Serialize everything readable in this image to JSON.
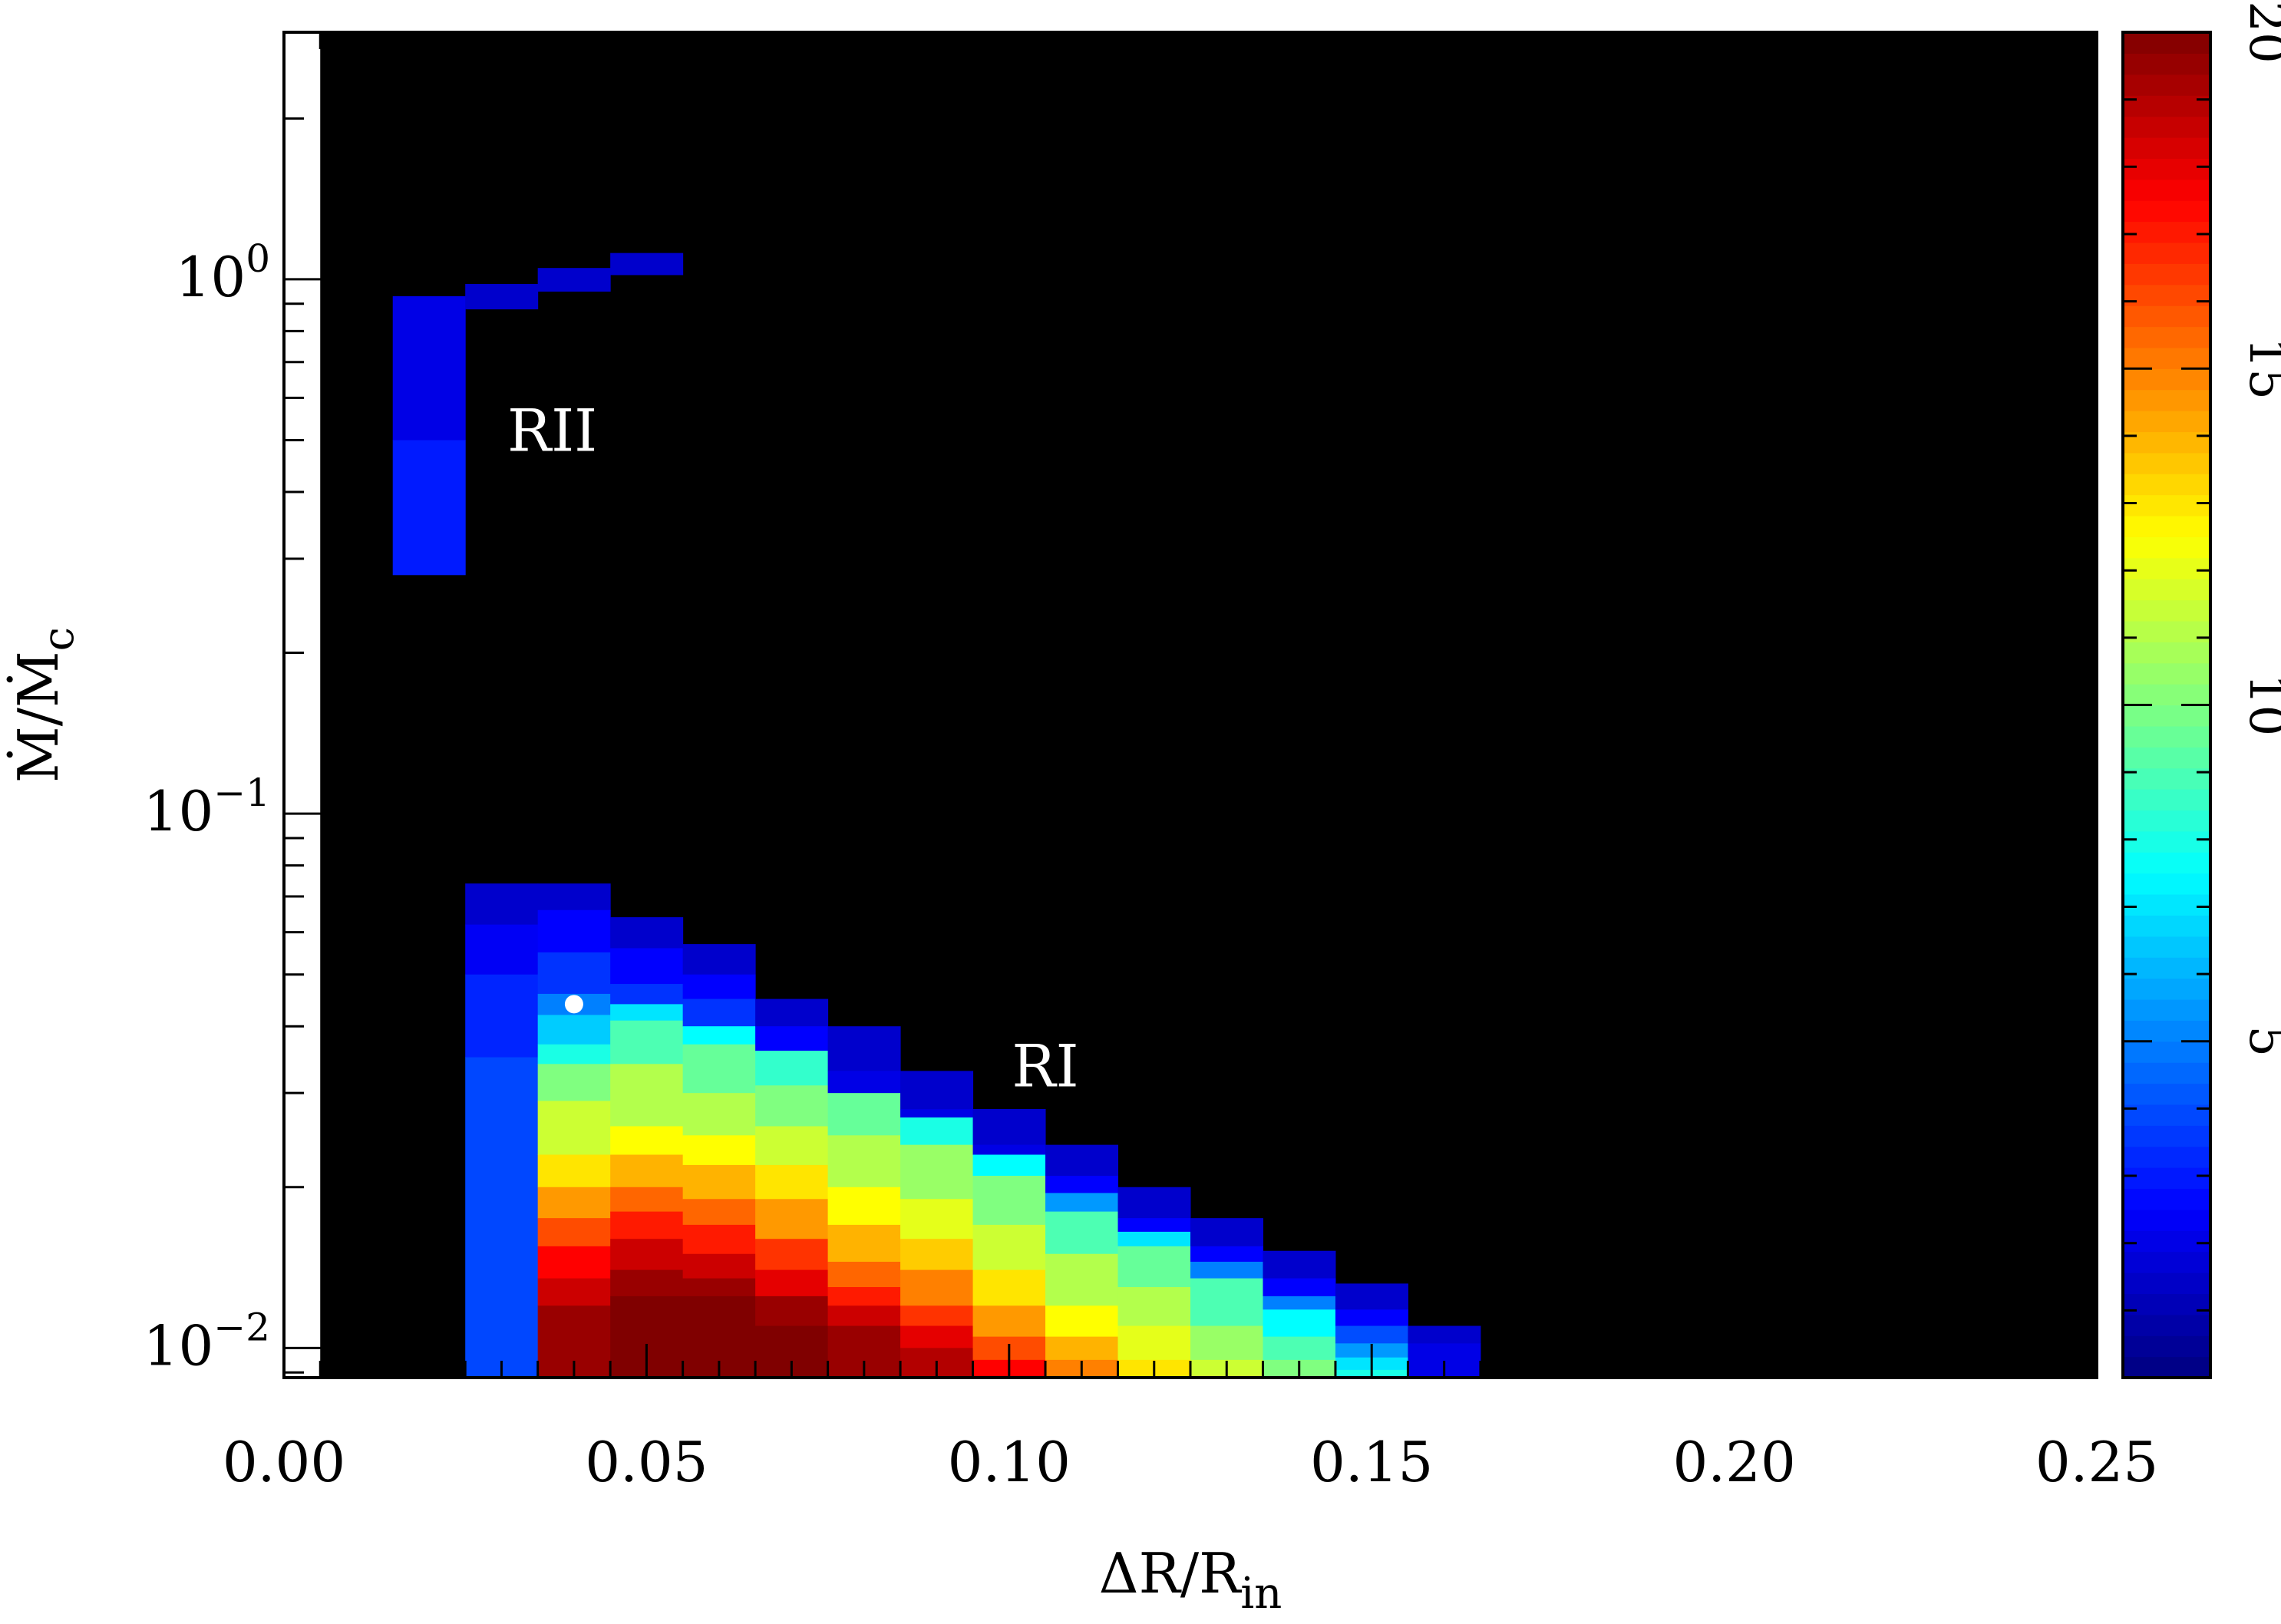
{
  "chart_data": {
    "type": "heatmap",
    "xlabel": {
      "base": "ΔR/R",
      "sub": "in"
    },
    "ylabel": {
      "base": "Ṁ/Ṁ",
      "sub": "c"
    },
    "x_scale": "linear",
    "y_scale": "log",
    "xlim": [
      0.0,
      0.25
    ],
    "ylim": [
      0.0088,
      2.9
    ],
    "x_ticks": [
      0.0,
      0.05,
      0.1,
      0.15,
      0.2,
      0.25
    ],
    "x_tick_labels": [
      "0.00",
      "0.05",
      "0.10",
      "0.15",
      "0.20",
      "0.25"
    ],
    "y_ticks": [
      0.01,
      0.1,
      1
    ],
    "y_tick_labels": [
      {
        "base": "10",
        "exp": "−2"
      },
      {
        "base": "10",
        "exp": "−1"
      },
      {
        "base": "10",
        "exp": "0"
      }
    ],
    "background": "#000000",
    "colorbar": {
      "range": [
        0,
        20
      ],
      "ticks": [
        5,
        10,
        15,
        20
      ],
      "tick_labels": [
        "5",
        "10",
        "15",
        "20"
      ],
      "colormap": "jet",
      "position": "right"
    },
    "annotations": [
      {
        "text": "RII",
        "x": 0.037,
        "y": 0.51
      },
      {
        "text": "RI",
        "x": 0.105,
        "y": 0.033
      }
    ],
    "marker": {
      "x": 0.04,
      "y": 0.044,
      "color": "#ffffff"
    },
    "columns": [
      {
        "x0": 0.015,
        "x1": 0.025,
        "ymin": 0.28,
        "ymax": 0.93,
        "cells": [
          {
            "y1": 0.93,
            "v": 2.0
          },
          {
            "y1": 0.5,
            "v": 3.0
          }
        ]
      },
      {
        "x0": 0.025,
        "x1": 0.035,
        "ymin": 0.88,
        "ymax": 0.98,
        "cells": [
          {
            "y1": 0.98,
            "v": 1.5
          }
        ]
      },
      {
        "x0": 0.035,
        "x1": 0.045,
        "ymin": 0.95,
        "ymax": 1.05,
        "cells": [
          {
            "y1": 1.05,
            "v": 1.5
          }
        ]
      },
      {
        "x0": 0.045,
        "x1": 0.055,
        "ymin": 1.02,
        "ymax": 1.12,
        "cells": [
          {
            "y1": 1.12,
            "v": 1.5
          }
        ]
      },
      {
        "x0": 0.025,
        "x1": 0.035,
        "ymin": 0.0088,
        "ymax": 0.074,
        "cells": [
          {
            "y1": 0.074,
            "v": 1.5
          },
          {
            "y1": 0.062,
            "v": 2.3
          },
          {
            "y1": 0.05,
            "v": 3.2
          },
          {
            "y1": 0.035,
            "v": 3.9
          }
        ]
      },
      {
        "x0": 0.035,
        "x1": 0.045,
        "ymin": 0.0088,
        "ymax": 0.074,
        "cells": [
          {
            "y1": 0.074,
            "v": 1.5
          },
          {
            "y1": 0.066,
            "v": 2.5
          },
          {
            "y1": 0.055,
            "v": 3.5
          },
          {
            "y1": 0.046,
            "v": 5.0
          },
          {
            "y1": 0.042,
            "v": 6.5
          },
          {
            "y1": 0.037,
            "v": 8.0
          },
          {
            "y1": 0.034,
            "v": 10.0
          },
          {
            "y1": 0.029,
            "v": 11.5
          },
          {
            "y1": 0.023,
            "v": 13.0
          },
          {
            "y1": 0.02,
            "v": 14.5
          },
          {
            "y1": 0.0175,
            "v": 16.0
          },
          {
            "y1": 0.0155,
            "v": 17.5
          },
          {
            "y1": 0.0135,
            "v": 18.5
          },
          {
            "y1": 0.012,
            "v": 19.5
          }
        ]
      },
      {
        "x0": 0.045,
        "x1": 0.055,
        "ymin": 0.0088,
        "ymax": 0.064,
        "cells": [
          {
            "y1": 0.064,
            "v": 1.5
          },
          {
            "y1": 0.056,
            "v": 2.5
          },
          {
            "y1": 0.048,
            "v": 3.5
          },
          {
            "y1": 0.044,
            "v": 7.0
          },
          {
            "y1": 0.041,
            "v": 9.0
          },
          {
            "y1": 0.034,
            "v": 11.0
          },
          {
            "y1": 0.026,
            "v": 12.5
          },
          {
            "y1": 0.023,
            "v": 14.0
          },
          {
            "y1": 0.02,
            "v": 15.5
          },
          {
            "y1": 0.018,
            "v": 17.0
          },
          {
            "y1": 0.016,
            "v": 18.5
          },
          {
            "y1": 0.014,
            "v": 19.5
          },
          {
            "y1": 0.0125,
            "v": 20.0
          }
        ]
      },
      {
        "x0": 0.055,
        "x1": 0.065,
        "ymin": 0.0088,
        "ymax": 0.057,
        "cells": [
          {
            "y1": 0.057,
            "v": 1.5
          },
          {
            "y1": 0.05,
            "v": 2.5
          },
          {
            "y1": 0.045,
            "v": 3.5
          },
          {
            "y1": 0.04,
            "v": 7.5
          },
          {
            "y1": 0.037,
            "v": 9.5
          },
          {
            "y1": 0.03,
            "v": 11.0
          },
          {
            "y1": 0.025,
            "v": 12.5
          },
          {
            "y1": 0.022,
            "v": 14.0
          },
          {
            "y1": 0.019,
            "v": 15.5
          },
          {
            "y1": 0.017,
            "v": 17.0
          },
          {
            "y1": 0.015,
            "v": 18.5
          },
          {
            "y1": 0.0135,
            "v": 19.5
          },
          {
            "y1": 0.0125,
            "v": 20.0
          }
        ]
      },
      {
        "x0": 0.065,
        "x1": 0.075,
        "ymin": 0.0088,
        "ymax": 0.045,
        "cells": [
          {
            "y1": 0.045,
            "v": 1.5
          },
          {
            "y1": 0.04,
            "v": 2.5
          },
          {
            "y1": 0.036,
            "v": 8.5
          },
          {
            "y1": 0.031,
            "v": 10.0
          },
          {
            "y1": 0.026,
            "v": 11.5
          },
          {
            "y1": 0.022,
            "v": 13.0
          },
          {
            "y1": 0.019,
            "v": 14.5
          },
          {
            "y1": 0.016,
            "v": 16.5
          },
          {
            "y1": 0.014,
            "v": 18.0
          },
          {
            "y1": 0.0125,
            "v": 19.5
          },
          {
            "y1": 0.011,
            "v": 20.0
          }
        ]
      },
      {
        "x0": 0.075,
        "x1": 0.085,
        "ymin": 0.0088,
        "ymax": 0.04,
        "cells": [
          {
            "y1": 0.04,
            "v": 1.5
          },
          {
            "y1": 0.033,
            "v": 2.0
          },
          {
            "y1": 0.03,
            "v": 9.5
          },
          {
            "y1": 0.025,
            "v": 11.0
          },
          {
            "y1": 0.02,
            "v": 12.5
          },
          {
            "y1": 0.017,
            "v": 14.0
          },
          {
            "y1": 0.0145,
            "v": 15.5
          },
          {
            "y1": 0.013,
            "v": 17.0
          },
          {
            "y1": 0.012,
            "v": 18.5
          },
          {
            "y1": 0.011,
            "v": 19.5
          }
        ]
      },
      {
        "x0": 0.085,
        "x1": 0.095,
        "ymin": 0.0088,
        "ymax": 0.033,
        "cells": [
          {
            "y1": 0.033,
            "v": 1.5
          },
          {
            "y1": 0.028,
            "v": 2.0
          },
          {
            "y1": 0.027,
            "v": 8.0
          },
          {
            "y1": 0.024,
            "v": 10.5
          },
          {
            "y1": 0.019,
            "v": 12.0
          },
          {
            "y1": 0.016,
            "v": 13.5
          },
          {
            "y1": 0.014,
            "v": 15.0
          },
          {
            "y1": 0.012,
            "v": 16.5
          },
          {
            "y1": 0.011,
            "v": 18.0
          },
          {
            "y1": 0.01,
            "v": 19.0
          }
        ]
      },
      {
        "x0": 0.095,
        "x1": 0.105,
        "ymin": 0.0088,
        "ymax": 0.028,
        "cells": [
          {
            "y1": 0.028,
            "v": 1.5
          },
          {
            "y1": 0.024,
            "v": 2.0
          },
          {
            "y1": 0.023,
            "v": 7.5
          },
          {
            "y1": 0.021,
            "v": 10.0
          },
          {
            "y1": 0.017,
            "v": 11.5
          },
          {
            "y1": 0.014,
            "v": 13.0
          },
          {
            "y1": 0.012,
            "v": 14.5
          },
          {
            "y1": 0.0105,
            "v": 16.0
          },
          {
            "y1": 0.0095,
            "v": 17.5
          }
        ]
      },
      {
        "x0": 0.105,
        "x1": 0.115,
        "ymin": 0.0088,
        "ymax": 0.024,
        "cells": [
          {
            "y1": 0.024,
            "v": 1.5
          },
          {
            "y1": 0.021,
            "v": 2.5
          },
          {
            "y1": 0.0195,
            "v": 5.5
          },
          {
            "y1": 0.018,
            "v": 9.0
          },
          {
            "y1": 0.015,
            "v": 11.0
          },
          {
            "y1": 0.012,
            "v": 12.5
          },
          {
            "y1": 0.0105,
            "v": 14.0
          },
          {
            "y1": 0.0095,
            "v": 15.0
          }
        ]
      },
      {
        "x0": 0.115,
        "x1": 0.125,
        "ymin": 0.0088,
        "ymax": 0.02,
        "cells": [
          {
            "y1": 0.02,
            "v": 1.5
          },
          {
            "y1": 0.0175,
            "v": 2.5
          },
          {
            "y1": 0.0165,
            "v": 7.0
          },
          {
            "y1": 0.0155,
            "v": 9.5
          },
          {
            "y1": 0.013,
            "v": 11.0
          },
          {
            "y1": 0.011,
            "v": 12.0
          },
          {
            "y1": 0.0095,
            "v": 13.0
          }
        ]
      },
      {
        "x0": 0.125,
        "x1": 0.135,
        "ymin": 0.0088,
        "ymax": 0.0175,
        "cells": [
          {
            "y1": 0.0175,
            "v": 1.5
          },
          {
            "y1": 0.0155,
            "v": 2.5
          },
          {
            "y1": 0.0145,
            "v": 5.0
          },
          {
            "y1": 0.0135,
            "v": 9.0
          },
          {
            "y1": 0.011,
            "v": 10.5
          },
          {
            "y1": 0.0095,
            "v": 11.5
          }
        ]
      },
      {
        "x0": 0.135,
        "x1": 0.145,
        "ymin": 0.0088,
        "ymax": 0.0152,
        "cells": [
          {
            "y1": 0.0152,
            "v": 1.5
          },
          {
            "y1": 0.0135,
            "v": 2.5
          },
          {
            "y1": 0.0125,
            "v": 5.0
          },
          {
            "y1": 0.0118,
            "v": 7.5
          },
          {
            "y1": 0.0105,
            "v": 9.0
          },
          {
            "y1": 0.0095,
            "v": 10.0
          }
        ]
      },
      {
        "x0": 0.145,
        "x1": 0.155,
        "ymin": 0.0088,
        "ymax": 0.0132,
        "cells": [
          {
            "y1": 0.0132,
            "v": 1.5
          },
          {
            "y1": 0.0118,
            "v": 2.5
          },
          {
            "y1": 0.011,
            "v": 4.0
          },
          {
            "y1": 0.0102,
            "v": 5.5
          },
          {
            "y1": 0.0096,
            "v": 7.0
          },
          {
            "y1": 0.0091,
            "v": 8.0
          }
        ]
      },
      {
        "x0": 0.155,
        "x1": 0.165,
        "ymin": 0.0088,
        "ymax": 0.011,
        "cells": [
          {
            "y1": 0.011,
            "v": 1.5
          },
          {
            "y1": 0.0102,
            "v": 2.0
          }
        ]
      }
    ]
  }
}
